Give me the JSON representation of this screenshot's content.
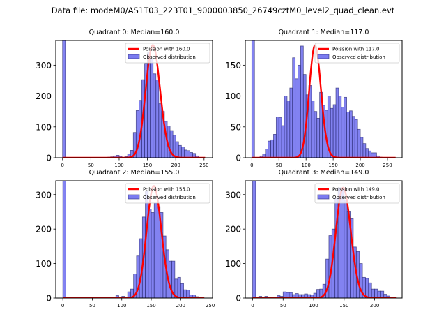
{
  "figure": {
    "suptitle": "Data file: modeM0/AS1T03_223T01_9000003850_26749cztM0_level2_quad_clean.evt"
  },
  "colors": {
    "bar_fill": "#7b7bf0",
    "bar_edge": "#24246b",
    "poisson_line": "#ff0000"
  },
  "chart_data": [
    {
      "type": "bar",
      "title": "Quadrant 0: Median=160.0",
      "xlabel": "",
      "ylabel": "",
      "xlim": [
        -12,
        265
      ],
      "ylim": [
        0,
        380
      ],
      "xticks": [
        0,
        50,
        100,
        150,
        200,
        250
      ],
      "yticks": [
        0,
        100,
        200,
        300
      ],
      "bin_width": 5,
      "legend": {
        "placement": "top-right",
        "entries": [
          "Poission with 160.0",
          "Observed distribution"
        ]
      },
      "series": [
        {
          "name": "Observed distribution",
          "kind": "histogram",
          "x": [
            0,
            75,
            80,
            85,
            90,
            95,
            100,
            105,
            110,
            115,
            120,
            125,
            130,
            135,
            140,
            145,
            150,
            155,
            160,
            165,
            170,
            175,
            180,
            185,
            190,
            195,
            200,
            205,
            210,
            215,
            220,
            225,
            230,
            235
          ],
          "values": [
            380,
            1,
            2,
            3,
            6,
            8,
            5,
            1,
            4,
            12,
            24,
            82,
            153,
            186,
            253,
            306,
            340,
            320,
            272,
            252,
            175,
            150,
            118,
            103,
            88,
            73,
            52,
            40,
            35,
            25,
            23,
            17,
            14,
            6
          ]
        },
        {
          "name": "Poission with 160.0",
          "kind": "poisson",
          "mean": 160.0,
          "peak": 365,
          "x_range": [
            0,
            252
          ]
        }
      ]
    },
    {
      "type": "bar",
      "title": "Quadrant 1: Median=117.0",
      "xlabel": "",
      "ylabel": "",
      "xlim": [
        -12,
        277
      ],
      "ylim": [
        0,
        190
      ],
      "xticks": [
        0,
        50,
        100,
        150,
        200,
        250
      ],
      "yticks": [
        0,
        50,
        100,
        150
      ],
      "bin_width": 5,
      "legend": {
        "placement": "top-right",
        "entries": [
          "Poission with 117.0",
          "Observed distribution"
        ]
      },
      "series": [
        {
          "name": "Observed distribution",
          "kind": "histogram",
          "x": [
            0,
            15,
            20,
            25,
            30,
            35,
            40,
            45,
            50,
            55,
            60,
            65,
            70,
            75,
            80,
            85,
            90,
            95,
            100,
            105,
            110,
            115,
            120,
            125,
            130,
            135,
            140,
            145,
            150,
            155,
            160,
            165,
            170,
            175,
            180,
            185,
            190,
            195,
            200,
            205,
            210,
            215,
            220,
            225,
            230,
            235
          ],
          "values": [
            190,
            3,
            6,
            14,
            27,
            29,
            38,
            66,
            65,
            52,
            100,
            92,
            113,
            162,
            128,
            150,
            181,
            135,
            102,
            117,
            92,
            75,
            64,
            106,
            85,
            77,
            100,
            80,
            86,
            113,
            100,
            82,
            98,
            74,
            76,
            67,
            62,
            46,
            33,
            23,
            15,
            11,
            8,
            8,
            3,
            1
          ]
        },
        {
          "name": "Poission with 117.0",
          "kind": "poisson",
          "mean": 117.0,
          "peak": 182,
          "x_range": [
            0,
            265
          ]
        }
      ]
    },
    {
      "type": "bar",
      "title": "Quadrant 2: Median=155.0",
      "xlabel": "",
      "ylabel": "",
      "xlim": [
        -12,
        254
      ],
      "ylim": [
        0,
        340
      ],
      "xticks": [
        0,
        50,
        100,
        150,
        200,
        250
      ],
      "yticks": [
        0,
        100,
        200,
        300
      ],
      "bin_width": 5,
      "legend": {
        "placement": "top-right",
        "entries": [
          "Poission with 155.0",
          "Observed distribution"
        ]
      },
      "series": [
        {
          "name": "Observed distribution",
          "kind": "histogram",
          "x": [
            0,
            80,
            85,
            90,
            95,
            100,
            105,
            110,
            115,
            120,
            125,
            130,
            135,
            140,
            145,
            150,
            155,
            160,
            165,
            170,
            175,
            180,
            185,
            190,
            195,
            200,
            205,
            210,
            215,
            220,
            225
          ],
          "values": [
            340,
            3,
            3,
            7,
            3,
            5,
            2,
            18,
            26,
            70,
            122,
            172,
            235,
            310,
            258,
            248,
            275,
            265,
            248,
            180,
            140,
            107,
            107,
            55,
            60,
            42,
            24,
            23,
            9,
            9,
            4
          ]
        },
        {
          "name": "Poission with 155.0",
          "kind": "poisson",
          "mean": 155.0,
          "peak": 325,
          "x_range": [
            0,
            240
          ]
        }
      ]
    },
    {
      "type": "bar",
      "title": "Quadrant 3: Median=149.0",
      "xlabel": "",
      "ylabel": "",
      "xlim": [
        -12,
        245
      ],
      "ylim": [
        0,
        340
      ],
      "xticks": [
        0,
        50,
        100,
        150,
        200
      ],
      "yticks": [
        0,
        100,
        200,
        300
      ],
      "bin_width": 5,
      "legend": {
        "placement": "top-right",
        "entries": [
          "Poission with 149.0",
          "Observed distribution"
        ]
      },
      "series": [
        {
          "name": "Observed distribution",
          "kind": "histogram",
          "x": [
            0,
            5,
            10,
            20,
            30,
            35,
            40,
            45,
            50,
            55,
            60,
            65,
            70,
            75,
            80,
            85,
            90,
            95,
            100,
            105,
            110,
            115,
            120,
            125,
            130,
            135,
            140,
            145,
            150,
            155,
            160,
            165,
            170,
            175,
            180,
            185,
            190,
            195,
            200,
            205,
            210,
            215,
            220,
            225
          ],
          "values": [
            340,
            3,
            5,
            5,
            2,
            3,
            7,
            5,
            18,
            16,
            16,
            10,
            13,
            10,
            10,
            12,
            10,
            9,
            14,
            25,
            26,
            40,
            113,
            181,
            200,
            290,
            320,
            320,
            285,
            250,
            230,
            148,
            135,
            100,
            60,
            57,
            44,
            26,
            26,
            20,
            20,
            11,
            6,
            2
          ]
        },
        {
          "name": "Poission with 149.0",
          "kind": "poisson",
          "mean": 149.0,
          "peak": 320,
          "x_range": [
            0,
            235
          ]
        }
      ]
    }
  ]
}
